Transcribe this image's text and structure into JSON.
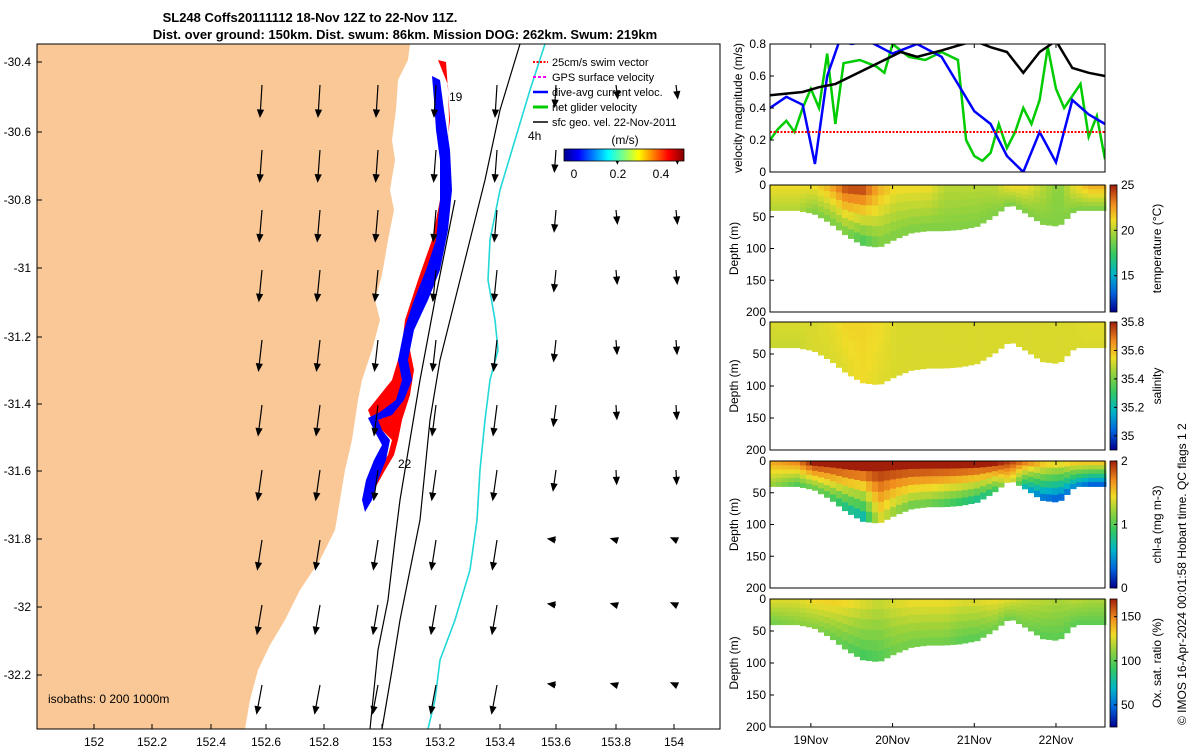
{
  "title": {
    "line1": "SL248 Coffs20111112 18-Nov 12Z to 22-Nov 11Z.",
    "line2": "Dist. over ground: 150km. Dist. swum: 86km. Mission DOG: 262km. Swum: 219km"
  },
  "colors": {
    "land": "#fac896",
    "track_blue": "#0000ff",
    "track_red": "#ff0000",
    "current_cyan": "#22d8d8",
    "black": "#000000"
  },
  "map": {
    "x_ticks": [
      "152",
      "152.2",
      "152.4",
      "152.6",
      "152.8",
      "153",
      "153.2",
      "153.4",
      "153.6",
      "153.8",
      "154"
    ],
    "y_ticks": [
      "-30.4",
      "-30.6",
      "-30.8",
      "-31",
      "-31.2",
      "-31.4",
      "-31.6",
      "-31.8",
      "-32",
      "-32.2"
    ],
    "day_labels": [
      "19",
      "22"
    ],
    "cyan_label": "4h",
    "isobaths_label": "isobaths: 0   200  1000m",
    "legend": [
      {
        "label": "25cm/s swim vector",
        "color": "#ff0000",
        "style": "dotted"
      },
      {
        "label": "GPS surface velocity",
        "color": "#ff00ff",
        "style": "dashed"
      },
      {
        "label": "dive-avg current veloc.",
        "color": "#0000ff",
        "style": "arrow"
      },
      {
        "label": "net glider velocity",
        "color": "#00cc00",
        "style": "solid"
      },
      {
        "label": "sfc geo. vel. 22-Nov-2011",
        "color": "#000000",
        "style": "arrow"
      }
    ],
    "colorbar": {
      "unit": "(m/s)",
      "ticks": [
        "0",
        "0.2",
        "0.4"
      ]
    }
  },
  "chart_data": [
    {
      "type": "line",
      "title": "",
      "xlabel": "",
      "ylabel": "velocity magnitude (m/s)",
      "ylim": [
        0,
        0.8
      ],
      "yticks": [
        "0",
        "0.2",
        "0.4",
        "0.6",
        "0.8"
      ],
      "series": [
        {
          "name": "net glider velocity",
          "color": "#00cc00",
          "x": [
            18.5,
            18.6,
            18.7,
            18.8,
            18.9,
            19.0,
            19.1,
            19.2,
            19.3,
            19.4,
            19.6,
            19.8,
            19.9,
            20.0,
            20.2,
            20.4,
            20.6,
            20.8,
            20.9,
            21.0,
            21.1,
            21.2,
            21.3,
            21.4,
            21.5,
            21.6,
            21.7,
            21.8,
            21.9,
            22.0,
            22.1,
            22.3,
            22.4,
            22.5,
            22.6
          ],
          "y": [
            0.2,
            0.27,
            0.32,
            0.25,
            0.4,
            0.52,
            0.4,
            0.74,
            0.3,
            0.68,
            0.7,
            0.66,
            0.62,
            0.8,
            0.72,
            0.7,
            0.75,
            0.7,
            0.2,
            0.1,
            0.07,
            0.12,
            0.3,
            0.15,
            0.25,
            0.4,
            0.3,
            0.45,
            0.78,
            0.52,
            0.4,
            0.55,
            0.22,
            0.35,
            0.08
          ]
        },
        {
          "name": "dive-avg current magnitude",
          "color": "#0000ff",
          "x": [
            18.5,
            18.7,
            18.9,
            19.05,
            19.2,
            19.35,
            19.5,
            19.7,
            20.0,
            20.3,
            20.6,
            20.8,
            21.0,
            21.2,
            21.4,
            21.6,
            21.8,
            22.0,
            22.2,
            22.4,
            22.6
          ],
          "y": [
            0.4,
            0.47,
            0.42,
            0.05,
            0.6,
            0.82,
            0.8,
            0.82,
            0.74,
            0.8,
            0.72,
            0.55,
            0.38,
            0.3,
            0.1,
            0.0,
            0.25,
            0.06,
            0.45,
            0.36,
            0.3
          ]
        },
        {
          "name": "sfc geo. vel. magnitude",
          "color": "#000000",
          "x": [
            18.5,
            18.7,
            18.9,
            19.1,
            19.3,
            19.5,
            19.7,
            19.9,
            20.1,
            20.3,
            20.6,
            21.0,
            21.2,
            21.4,
            21.6,
            21.8,
            22.0,
            22.2,
            22.4,
            22.6
          ],
          "y": [
            0.48,
            0.49,
            0.5,
            0.53,
            0.55,
            0.6,
            0.65,
            0.7,
            0.75,
            0.72,
            0.76,
            0.82,
            0.78,
            0.75,
            0.62,
            0.75,
            0.82,
            0.65,
            0.62,
            0.6
          ]
        },
        {
          "name": "25cm/s swim vector",
          "color": "#ff0000",
          "x": [
            18.5,
            22.6
          ],
          "y": [
            0.25,
            0.25
          ]
        }
      ]
    },
    {
      "type": "heatmap",
      "ylabel": "Depth (m)",
      "colorbar_label": "temperature (°C)",
      "ylim": [
        200,
        0
      ],
      "yticks": [
        "0",
        "50",
        "100",
        "150",
        "200"
      ],
      "colorbar_ticks": [
        "25",
        "20",
        "15"
      ],
      "colorbar_range": [
        11,
        25
      ],
      "x": [
        18.5,
        18.8,
        19.0,
        19.2,
        19.4,
        19.6,
        19.8,
        20.0,
        20.2,
        20.4,
        20.6,
        20.8,
        21.0,
        21.2,
        21.4,
        21.6,
        21.8,
        22.0,
        22.2,
        22.4,
        22.6
      ],
      "bottom_depth": [
        40,
        40,
        45,
        60,
        80,
        95,
        98,
        85,
        75,
        72,
        72,
        70,
        65,
        50,
        30,
        45,
        62,
        65,
        40,
        40,
        40
      ],
      "surface_value": [
        21,
        21,
        21,
        22,
        24,
        24,
        22,
        21,
        21,
        21,
        20,
        20,
        20,
        20,
        21,
        21,
        20,
        19,
        21,
        22,
        22
      ],
      "deep_value": [
        20,
        20,
        19,
        19,
        19,
        18,
        19,
        19,
        19,
        19,
        19,
        19,
        19,
        19,
        19,
        19,
        19,
        19,
        19,
        19,
        19
      ]
    },
    {
      "type": "heatmap",
      "ylabel": "Depth (m)",
      "colorbar_label": "salinity",
      "ylim": [
        200,
        0
      ],
      "yticks": [
        "0",
        "50",
        "100",
        "150",
        "200"
      ],
      "colorbar_ticks": [
        "35.8",
        "35.6",
        "35.4",
        "35.2",
        "35"
      ],
      "colorbar_range": [
        34.9,
        35.8
      ],
      "x": [
        18.5,
        18.8,
        19.0,
        19.2,
        19.4,
        19.6,
        19.8,
        20.0,
        20.2,
        20.4,
        20.6,
        20.8,
        21.0,
        21.2,
        21.4,
        21.6,
        21.8,
        22.0,
        22.2,
        22.4,
        22.6
      ],
      "bottom_depth": [
        40,
        40,
        45,
        60,
        80,
        95,
        98,
        85,
        75,
        72,
        72,
        70,
        65,
        50,
        30,
        45,
        62,
        65,
        40,
        40,
        40
      ],
      "surface_value": [
        35.52,
        35.52,
        35.52,
        35.53,
        35.56,
        35.56,
        35.55,
        35.52,
        35.52,
        35.52,
        35.52,
        35.52,
        35.52,
        35.52,
        35.52,
        35.52,
        35.52,
        35.52,
        35.52,
        35.53,
        35.53
      ],
      "deep_value": [
        35.5,
        35.5,
        35.52,
        35.52,
        35.53,
        35.55,
        35.53,
        35.52,
        35.52,
        35.52,
        35.52,
        35.52,
        35.52,
        35.52,
        35.52,
        35.52,
        35.52,
        35.52,
        35.52,
        35.52,
        35.52
      ]
    },
    {
      "type": "heatmap",
      "ylabel": "Depth (m)",
      "colorbar_label": "chl-a (mg m-3)",
      "ylim": [
        200,
        0
      ],
      "yticks": [
        "0",
        "50",
        "100",
        "150",
        "200"
      ],
      "colorbar_ticks": [
        "2",
        "1",
        "0"
      ],
      "colorbar_range": [
        0,
        2
      ],
      "x": [
        18.5,
        18.8,
        19.0,
        19.2,
        19.4,
        19.6,
        19.8,
        20.0,
        20.2,
        20.4,
        20.6,
        20.8,
        21.0,
        21.2,
        21.4,
        21.6,
        21.8,
        22.0,
        22.2,
        22.4,
        22.6
      ],
      "bottom_depth": [
        40,
        40,
        45,
        60,
        80,
        95,
        98,
        85,
        75,
        72,
        72,
        70,
        65,
        50,
        30,
        45,
        62,
        65,
        40,
        40,
        40
      ],
      "surface_value": [
        1.6,
        1.7,
        2,
        2,
        2,
        2,
        2,
        2,
        2,
        2,
        2,
        2,
        2,
        2,
        1.9,
        1.7,
        1.5,
        1.4,
        1.5,
        1.5,
        1.5
      ],
      "deep_value": [
        1.2,
        1.0,
        1.1,
        1.0,
        0.8,
        0.7,
        1.4,
        1.2,
        1.1,
        1.1,
        1.0,
        0.9,
        0.8,
        0.9,
        1.5,
        0.6,
        0.4,
        0.3,
        0.5,
        0.3,
        0.3
      ]
    },
    {
      "type": "heatmap",
      "ylabel": "Depth (m)",
      "colorbar_label": "Ox. sat. ratio (%)",
      "ylim": [
        200,
        0
      ],
      "yticks": [
        "0",
        "50",
        "100",
        "150",
        "200"
      ],
      "colorbar_ticks": [
        "150",
        "100",
        "50"
      ],
      "colorbar_range": [
        25,
        170
      ],
      "x": [
        18.5,
        18.8,
        19.0,
        19.2,
        19.4,
        19.6,
        19.8,
        20.0,
        20.2,
        20.4,
        20.6,
        20.8,
        21.0,
        21.2,
        21.4,
        21.6,
        21.8,
        22.0,
        22.2,
        22.4,
        22.6
      ],
      "bottom_depth": [
        40,
        40,
        45,
        60,
        80,
        95,
        98,
        85,
        75,
        72,
        72,
        70,
        65,
        50,
        30,
        45,
        62,
        65,
        40,
        40,
        40
      ],
      "surface_value": [
        125,
        125,
        130,
        132,
        130,
        125,
        120,
        125,
        128,
        128,
        128,
        125,
        125,
        128,
        125,
        120,
        118,
        115,
        118,
        115,
        115
      ],
      "deep_value": [
        105,
        110,
        110,
        105,
        100,
        95,
        98,
        105,
        105,
        105,
        105,
        100,
        100,
        105,
        105,
        105,
        100,
        100,
        100,
        100,
        100
      ]
    }
  ],
  "time_axis": {
    "range": [
      18.5,
      22.6
    ],
    "ticks": [
      {
        "v": 19,
        "label": "19Nov"
      },
      {
        "v": 20,
        "label": "20Nov"
      },
      {
        "v": 21,
        "label": "21Nov"
      },
      {
        "v": 22,
        "label": "22Nov"
      }
    ]
  },
  "footer_vertical": "© IMOS 16-Apr-2024 00:01:58 Hobart time. QC flags 1  2"
}
